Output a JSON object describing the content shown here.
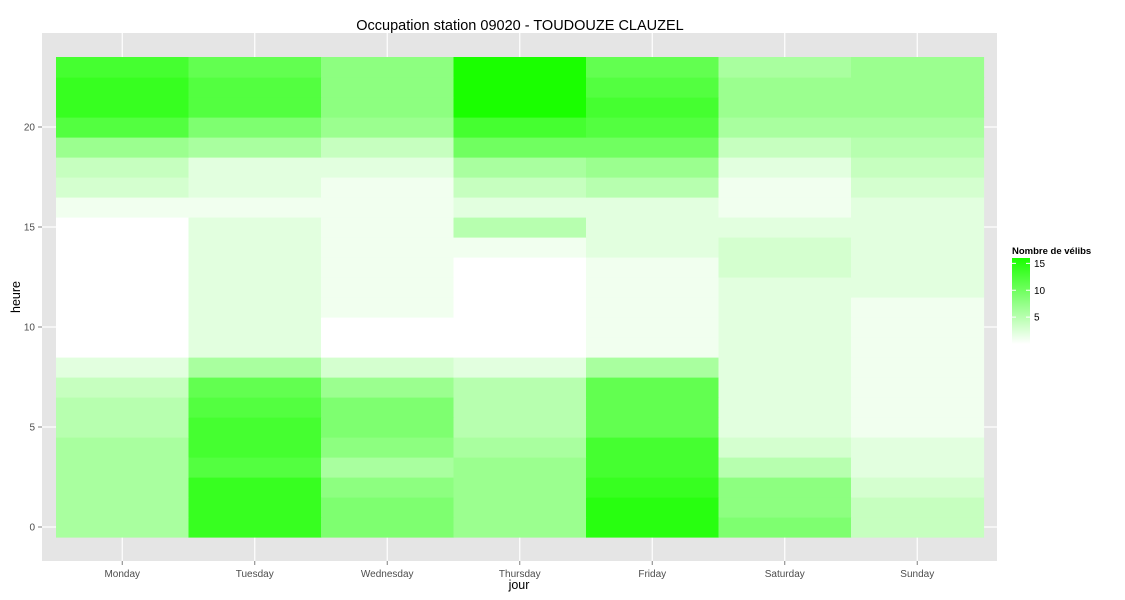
{
  "chart_data": {
    "type": "heatmap",
    "title": "Occupation station 09020 - TOUDOUZE CLAUZEL",
    "xlabel": "jour",
    "ylabel": "heure",
    "x": [
      "Monday",
      "Tuesday",
      "Wednesday",
      "Thursday",
      "Friday",
      "Saturday",
      "Sunday"
    ],
    "y": [
      0,
      1,
      2,
      3,
      4,
      5,
      6,
      7,
      8,
      9,
      10,
      11,
      12,
      13,
      14,
      15,
      16,
      17,
      18,
      19,
      20,
      21,
      22,
      23
    ],
    "ylim": [
      -0.5,
      23.5
    ],
    "yticks": [
      0,
      5,
      10,
      15,
      20
    ],
    "grid": true,
    "legend": {
      "title": "Nombre de vélibs",
      "position": "right",
      "ticks": [
        5,
        10,
        15
      ],
      "range": [
        0,
        16
      ],
      "color_low": "#ffffff",
      "color_high": "#1aff00"
    },
    "values": [
      [
        6,
        14,
        9,
        7,
        15,
        9,
        4
      ],
      [
        6,
        14,
        9,
        7,
        15,
        8,
        4
      ],
      [
        6,
        14,
        8,
        7,
        14,
        8,
        3
      ],
      [
        6,
        12,
        6,
        7,
        13,
        5,
        2
      ],
      [
        6,
        13,
        8,
        6,
        13,
        3,
        2
      ],
      [
        5,
        13,
        9,
        5,
        11,
        2,
        1
      ],
      [
        5,
        12,
        9,
        5,
        11,
        2,
        1
      ],
      [
        4,
        11,
        7,
        5,
        11,
        2,
        1
      ],
      [
        2,
        6,
        3,
        2,
        6,
        2,
        1
      ],
      [
        0,
        2,
        0,
        0,
        1,
        2,
        1
      ],
      [
        0,
        2,
        0,
        0,
        1,
        2,
        1
      ],
      [
        0,
        2,
        1,
        0,
        1,
        2,
        1
      ],
      [
        0,
        2,
        1,
        0,
        1,
        2,
        2
      ],
      [
        0,
        2,
        1,
        0,
        1,
        3,
        2
      ],
      [
        0,
        2,
        1,
        1,
        2,
        3,
        2
      ],
      [
        0,
        2,
        1,
        5,
        2,
        2,
        2
      ],
      [
        1,
        1,
        1,
        2,
        2,
        1,
        2
      ],
      [
        3,
        2,
        1,
        4,
        5,
        1,
        3
      ],
      [
        4,
        2,
        2,
        6,
        7,
        2,
        4
      ],
      [
        7,
        6,
        4,
        10,
        10,
        4,
        5
      ],
      [
        12,
        9,
        7,
        13,
        12,
        6,
        6
      ],
      [
        14,
        12,
        8,
        16,
        13,
        7,
        7
      ],
      [
        14,
        12,
        8,
        16,
        12,
        7,
        7
      ],
      [
        13,
        11,
        8,
        16,
        11,
        6,
        7
      ]
    ]
  }
}
